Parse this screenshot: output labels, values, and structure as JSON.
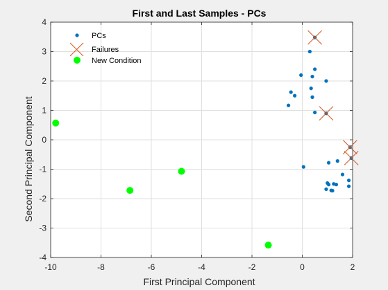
{
  "chart_data": {
    "type": "scatter",
    "title": "First and Last Samples - PCs",
    "xlabel": "First Principal Component",
    "ylabel": "Second Principal Component",
    "xlim": [
      -10,
      2
    ],
    "ylim": [
      -4,
      4
    ],
    "xticks": [
      -10,
      -8,
      -6,
      -4,
      -2,
      0,
      2
    ],
    "yticks": [
      -4,
      -3,
      -2,
      -1,
      0,
      1,
      2,
      3,
      4
    ],
    "xtick_labels": [
      "-10",
      "-8",
      "-6",
      "-4",
      "-2",
      "0",
      "2"
    ],
    "ytick_labels": [
      "-4",
      "-3",
      "-2",
      "-1",
      "0",
      "1",
      "2",
      "3",
      "4"
    ],
    "grid": true,
    "legend_position": "top-left",
    "series": [
      {
        "name": "PCs",
        "marker": "dot",
        "color": "#0072bd",
        "points": [
          [
            0.3,
            3.0
          ],
          [
            0.5,
            3.48
          ],
          [
            0.5,
            2.4
          ],
          [
            0.4,
            2.15
          ],
          [
            -0.05,
            2.2
          ],
          [
            0.95,
            2.0
          ],
          [
            0.35,
            1.75
          ],
          [
            -0.45,
            1.62
          ],
          [
            -0.3,
            1.5
          ],
          [
            0.4,
            1.45
          ],
          [
            -0.55,
            1.17
          ],
          [
            0.5,
            0.93
          ],
          [
            0.95,
            0.9
          ],
          [
            1.9,
            -0.25
          ],
          [
            1.95,
            -0.62
          ],
          [
            1.05,
            -0.78
          ],
          [
            1.4,
            -0.72
          ],
          [
            0.05,
            -0.92
          ],
          [
            1.6,
            -1.18
          ],
          [
            1.85,
            -1.38
          ],
          [
            1.0,
            -1.47
          ],
          [
            1.25,
            -1.5
          ],
          [
            1.05,
            -1.52
          ],
          [
            1.35,
            -1.52
          ],
          [
            1.85,
            -1.58
          ],
          [
            0.95,
            -1.68
          ],
          [
            1.15,
            -1.72
          ],
          [
            1.2,
            -1.73
          ]
        ]
      },
      {
        "name": "Failures",
        "marker": "x",
        "color": "#d95319",
        "points": [
          [
            0.5,
            3.48
          ],
          [
            0.95,
            0.9
          ],
          [
            1.9,
            -0.25
          ],
          [
            1.95,
            -0.62
          ]
        ]
      },
      {
        "name": "New Condition",
        "marker": "filled-circle",
        "color": "#00ff00",
        "points": [
          [
            -9.8,
            0.57
          ],
          [
            -6.85,
            -1.72
          ],
          [
            -4.8,
            -1.07
          ],
          [
            -1.35,
            -3.58
          ]
        ]
      }
    ]
  }
}
